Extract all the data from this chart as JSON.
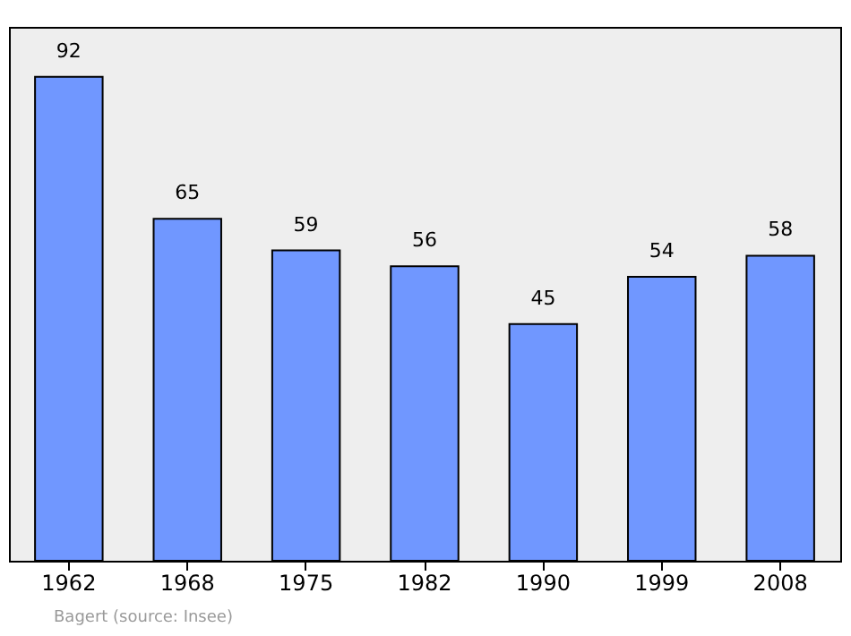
{
  "chart_data": {
    "type": "bar",
    "categories": [
      "1962",
      "1968",
      "1975",
      "1982",
      "1990",
      "1999",
      "2008"
    ],
    "values": [
      92,
      65,
      59,
      56,
      45,
      54,
      58
    ],
    "color": "#7097ff",
    "ylim": [
      0,
      101.5
    ],
    "data_labels": true,
    "tick_labels": "x",
    "grid": false,
    "annotations": [
      "Bagert (source: Insee)"
    ]
  }
}
